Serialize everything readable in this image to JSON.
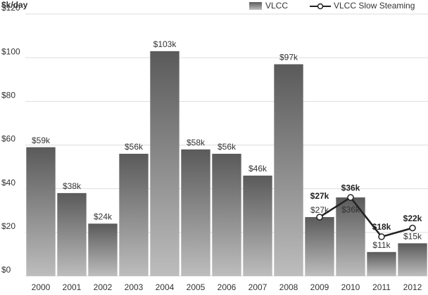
{
  "chart_data": {
    "type": "bar",
    "y_axis_label": "$k/day",
    "categories": [
      "2000",
      "2001",
      "2002",
      "2003",
      "2004",
      "2005",
      "2006",
      "2007",
      "2008",
      "2009",
      "2010",
      "2011",
      "2012"
    ],
    "series": [
      {
        "name": "VLCC",
        "type": "bar",
        "color": "#777777",
        "values": [
          59,
          38,
          24,
          56,
          103,
          58,
          56,
          46,
          97,
          27,
          36,
          11,
          15
        ],
        "value_labels": [
          "$59k",
          "$38k",
          "$24k",
          "$56k",
          "$103k",
          "$58k",
          "$56k",
          "$46k",
          "$97k",
          "$27k",
          "$36k",
          "$11k",
          "$15k"
        ]
      },
      {
        "name": "VLCC Slow Steaming",
        "type": "line",
        "color": "#222222",
        "values": [
          null,
          null,
          null,
          null,
          null,
          null,
          null,
          null,
          null,
          27,
          36,
          18,
          22
        ],
        "value_labels": [
          null,
          null,
          null,
          null,
          null,
          null,
          null,
          null,
          null,
          "$27k",
          "$36k",
          "$18k",
          "$22k"
        ]
      }
    ],
    "ylim": [
      0,
      120
    ],
    "yticks": [
      {
        "value": 0,
        "label": "$0"
      },
      {
        "value": 20,
        "label": "$20"
      },
      {
        "value": 40,
        "label": "$40"
      },
      {
        "value": 60,
        "label": "$60"
      },
      {
        "value": 80,
        "label": "$80"
      },
      {
        "value": 100,
        "label": "$100"
      },
      {
        "value": 120,
        "label": "$120"
      }
    ],
    "grid": true,
    "legend": "top-right"
  }
}
